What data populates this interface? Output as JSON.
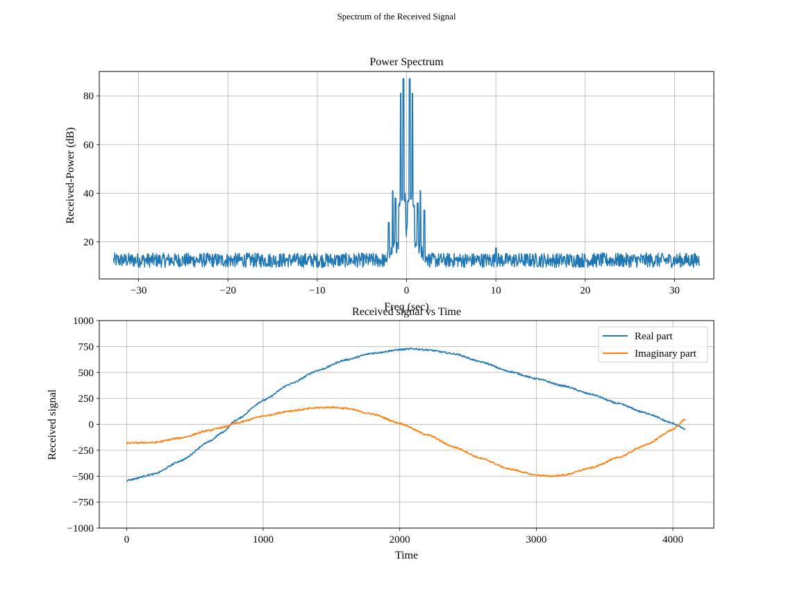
{
  "figure": {
    "suptitle": "Spectrum of the Received Signal"
  },
  "colors": {
    "series1": "#1f77b4",
    "series2": "#ff7f0e",
    "grid": "#b0b0b0",
    "axes": "#000000"
  },
  "chart_data": [
    {
      "type": "line",
      "title": "Power Spectrum",
      "xlabel": "Freq (sec)",
      "ylabel": "Received-Power (dB)",
      "xlim": [
        -34.4,
        34.4
      ],
      "ylim": [
        4.8,
        90
      ],
      "xticks": [
        -30,
        -20,
        -10,
        0,
        10,
        20,
        30
      ],
      "xtick_labels": [
        "−30",
        "−20",
        "−10",
        "0",
        "10",
        "20",
        "30"
      ],
      "yticks": [
        20,
        40,
        60,
        80
      ],
      "ytick_labels": [
        "20",
        "40",
        "60",
        "80"
      ],
      "grid": true,
      "legend": null,
      "series": [
        {
          "color": "#1f77b4",
          "x_range": [
            -32.8,
            32.8
          ],
          "noise_floor_db": 12.5,
          "noise_range_db": [
            9,
            16
          ],
          "peaks": [
            {
              "x": -0.65,
              "y": 81
            },
            {
              "x": -0.35,
              "y": 87
            },
            {
              "x": 0.35,
              "y": 87
            },
            {
              "x": 0.65,
              "y": 81
            },
            {
              "x": -1.55,
              "y": 41
            },
            {
              "x": 1.55,
              "y": 41
            },
            {
              "x": -1.25,
              "y": 38
            },
            {
              "x": 1.25,
              "y": 36
            },
            {
              "x": -2.0,
              "y": 28
            },
            {
              "x": 2.0,
              "y": 33
            },
            {
              "x": 10.0,
              "y": 17.5
            }
          ]
        }
      ]
    },
    {
      "type": "line",
      "title": "Received signal vs Time",
      "xlabel": "Time",
      "ylabel": "Received signal",
      "xlim": [
        -200,
        4300
      ],
      "ylim": [
        -1000,
        1000
      ],
      "xticks": [
        0,
        1000,
        2000,
        3000,
        4000
      ],
      "xtick_labels": [
        "0",
        "1000",
        "2000",
        "3000",
        "4000"
      ],
      "yticks": [
        -1000,
        -750,
        -500,
        -250,
        0,
        250,
        500,
        750,
        1000
      ],
      "ytick_labels": [
        "−1000",
        "−750",
        "−500",
        "−250",
        "0",
        "250",
        "500",
        "750",
        "1000"
      ],
      "grid": true,
      "legend": "top-right",
      "series": [
        {
          "name": "Real part",
          "color": "#1f77b4",
          "x_range": [
            0,
            4095
          ],
          "points": [
            [
              0,
              -540
            ],
            [
              200,
              -480
            ],
            [
              400,
              -350
            ],
            [
              600,
              -170
            ],
            [
              700,
              -80
            ],
            [
              800,
              40
            ],
            [
              1000,
              230
            ],
            [
              1200,
              390
            ],
            [
              1400,
              520
            ],
            [
              1600,
              620
            ],
            [
              1800,
              685
            ],
            [
              2000,
              720
            ],
            [
              2100,
              728
            ],
            [
              2200,
              718
            ],
            [
              2400,
              680
            ],
            [
              2600,
              600
            ],
            [
              2800,
              510
            ],
            [
              3000,
              440
            ],
            [
              3200,
              370
            ],
            [
              3400,
              290
            ],
            [
              3600,
              200
            ],
            [
              3800,
              110
            ],
            [
              4000,
              10
            ],
            [
              4095,
              -50
            ]
          ]
        },
        {
          "name": "Imaginary part",
          "color": "#ff7f0e",
          "x_range": [
            0,
            4095
          ],
          "points": [
            [
              0,
              -180
            ],
            [
              200,
              -175
            ],
            [
              400,
              -130
            ],
            [
              600,
              -60
            ],
            [
              700,
              -30
            ],
            [
              800,
              10
            ],
            [
              1000,
              80
            ],
            [
              1200,
              130
            ],
            [
              1400,
              160
            ],
            [
              1500,
              165
            ],
            [
              1600,
              155
            ],
            [
              1800,
              100
            ],
            [
              2000,
              10
            ],
            [
              2200,
              -100
            ],
            [
              2400,
              -220
            ],
            [
              2600,
              -330
            ],
            [
              2800,
              -430
            ],
            [
              3000,
              -490
            ],
            [
              3100,
              -500
            ],
            [
              3200,
              -490
            ],
            [
              3400,
              -420
            ],
            [
              3600,
              -320
            ],
            [
              3800,
              -200
            ],
            [
              4000,
              -50
            ],
            [
              4095,
              55
            ]
          ]
        }
      ]
    }
  ]
}
